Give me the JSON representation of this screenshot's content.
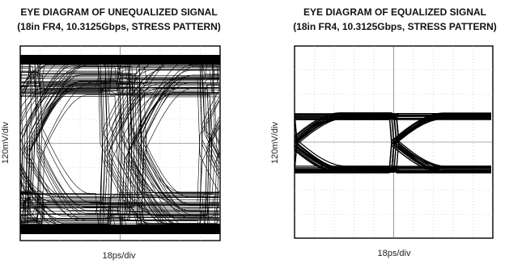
{
  "panels": [
    {
      "title_lines": [
        "EYE DIAGRAM OF UNEQUALIZED SIGNAL",
        "(18in FR4, 10.3125Gbps, STRESS PATTERN)"
      ],
      "x_label": "18ps/div",
      "y_label": "120mV/div"
    },
    {
      "title_lines": [
        "EYE DIAGRAM OF EQUALIZED SIGNAL",
        "(18in FR4, 10.3125Gbps, STRESS PATTERN)"
      ],
      "x_label": "18ps/div",
      "y_label": "120mV/div"
    }
  ]
}
